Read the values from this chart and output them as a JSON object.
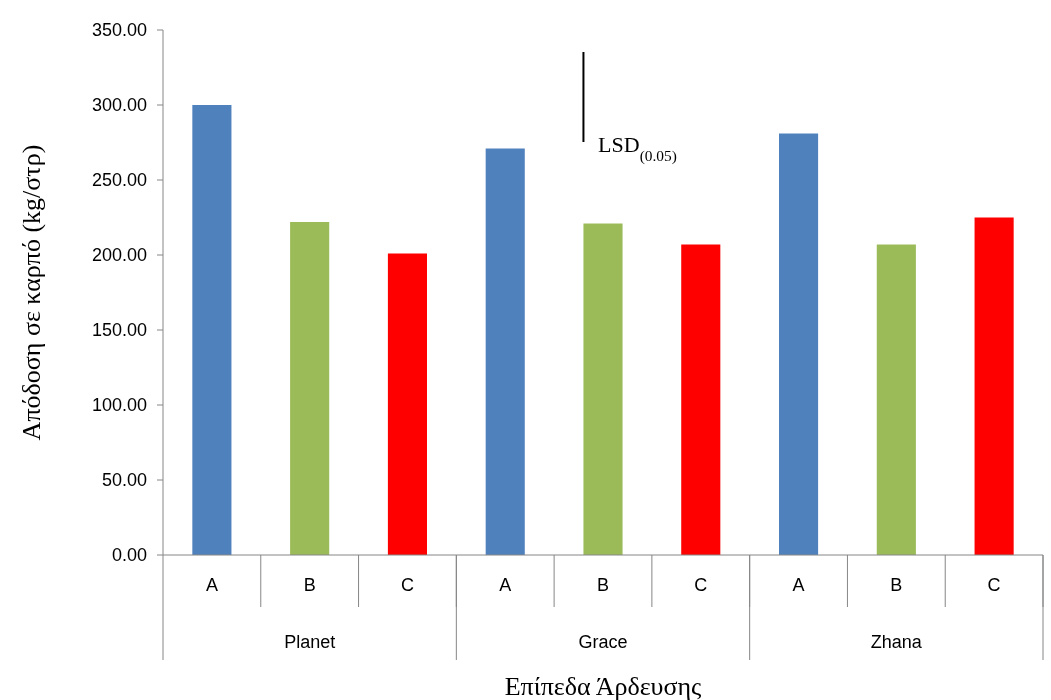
{
  "chart_data": {
    "type": "bar",
    "xlabel": "Επίπεδα Άρδευσης",
    "ylabel": "Απόδοση σε καρπό (kg/στρ)",
    "categories": [
      "A",
      "B",
      "C",
      "A",
      "B",
      "C",
      "A",
      "B",
      "C"
    ],
    "values": [
      300,
      222,
      201,
      271,
      221,
      207,
      281,
      207,
      225
    ],
    "colors": [
      "#4f81bd",
      "#9bbb59",
      "#ff0000",
      "#4f81bd",
      "#9bbb59",
      "#ff0000",
      "#4f81bd",
      "#9bbb59",
      "#ff0000"
    ],
    "ylim": [
      0,
      350
    ],
    "yticks": [
      {
        "value": 0,
        "label": "0.00"
      },
      {
        "value": 50,
        "label": "50.00"
      },
      {
        "value": 100,
        "label": "100.00"
      },
      {
        "value": 150,
        "label": "150.00"
      },
      {
        "value": 200,
        "label": "200.00"
      },
      {
        "value": 250,
        "label": "250.00"
      },
      {
        "value": 300,
        "label": "300.00"
      },
      {
        "value": 350,
        "label": "350.00"
      }
    ],
    "annotations": [
      "Planet",
      "Grace",
      "Zhana",
      "LSD$_{(0.05)}$"
    ]
  }
}
